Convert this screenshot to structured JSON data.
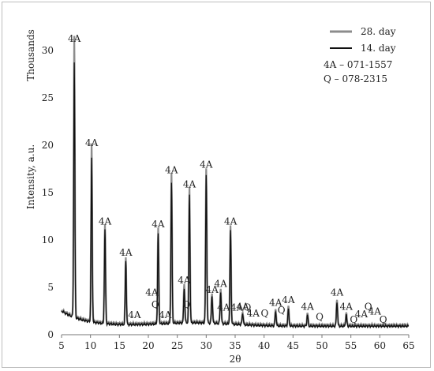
{
  "chart_data": {
    "type": "line",
    "ylabel": "Intensity, a.u.",
    "y_unit_label": "Thousands",
    "xlabel": "2θ",
    "xlim": [
      5,
      65
    ],
    "ylim": [
      0,
      32
    ],
    "x_ticks": [
      "5",
      "10",
      "15",
      "20",
      "25",
      "30",
      "35",
      "40",
      "45",
      "50",
      "55",
      "60",
      "65"
    ],
    "y_ticks": [
      "0",
      "5",
      "10",
      "15",
      "20",
      "25",
      "30"
    ],
    "legend_position": "top-right",
    "reference_text": [
      "4A – 071-1557",
      "Q – 078-2315"
    ],
    "series": [
      {
        "name": "28. day",
        "color": "#8c8c8c",
        "peaks": [
          [
            7.2,
            30.6
          ],
          [
            10.2,
            19.6
          ],
          [
            12.5,
            11.3
          ],
          [
            16.1,
            8.0
          ],
          [
            21.7,
            11.0
          ],
          [
            24.0,
            16.7
          ],
          [
            26.2,
            5.1
          ],
          [
            27.1,
            15.2
          ],
          [
            30.0,
            17.3
          ],
          [
            31.0,
            4.1
          ],
          [
            32.5,
            4.7
          ],
          [
            34.2,
            11.3
          ],
          [
            36.3,
            2.3
          ],
          [
            42.0,
            2.7
          ],
          [
            44.2,
            3.0
          ],
          [
            47.5,
            2.3
          ],
          [
            52.6,
            3.8
          ],
          [
            54.2,
            2.3
          ]
        ]
      },
      {
        "name": "14. day",
        "color": "#111111",
        "peaks": [
          [
            7.2,
            27.8
          ],
          [
            10.2,
            18.1
          ],
          [
            12.5,
            10.8
          ],
          [
            16.1,
            7.6
          ],
          [
            21.7,
            10.4
          ],
          [
            24.0,
            15.7
          ],
          [
            26.2,
            4.6
          ],
          [
            27.1,
            14.4
          ],
          [
            30.0,
            16.6
          ],
          [
            31.0,
            3.8
          ],
          [
            32.5,
            4.3
          ],
          [
            34.2,
            10.8
          ],
          [
            36.3,
            2.1
          ],
          [
            42.0,
            2.4
          ],
          [
            44.2,
            2.7
          ],
          [
            47.5,
            2.1
          ],
          [
            52.6,
            3.5
          ],
          [
            54.2,
            2.1
          ]
        ]
      }
    ],
    "annotations": [
      {
        "text": "4A",
        "x": 7.2,
        "y": 30.6
      },
      {
        "text": "4A",
        "x": 10.2,
        "y": 19.6
      },
      {
        "text": "4A",
        "x": 12.5,
        "y": 11.3
      },
      {
        "text": "4A",
        "x": 16.1,
        "y": 8.0
      },
      {
        "text": "4A",
        "x": 17.6,
        "y": 1.4
      },
      {
        "text": "4A",
        "x": 20.6,
        "y": 3.8
      },
      {
        "text": "Q",
        "x": 21.2,
        "y": 2.5
      },
      {
        "text": "4A",
        "x": 21.7,
        "y": 11.0
      },
      {
        "text": "4A",
        "x": 22.9,
        "y": 1.4
      },
      {
        "text": "4A",
        "x": 24.0,
        "y": 16.7
      },
      {
        "text": "4A",
        "x": 26.2,
        "y": 5.1
      },
      {
        "text": "Q",
        "x": 26.6,
        "y": 2.5
      },
      {
        "text": "4A",
        "x": 27.1,
        "y": 15.2
      },
      {
        "text": "4A",
        "x": 30.0,
        "y": 17.3
      },
      {
        "text": "4A",
        "x": 31.0,
        "y": 4.1
      },
      {
        "text": "4A",
        "x": 32.5,
        "y": 4.7
      },
      {
        "text": "4A",
        "x": 33.0,
        "y": 2.2
      },
      {
        "text": "4A",
        "x": 34.2,
        "y": 11.3
      },
      {
        "text": "4A",
        "x": 35.3,
        "y": 2.2
      },
      {
        "text": "4A",
        "x": 36.3,
        "y": 2.3
      },
      {
        "text": "Q",
        "x": 37.1,
        "y": 2.2
      },
      {
        "text": "4A",
        "x": 38.1,
        "y": 1.6
      },
      {
        "text": "Q",
        "x": 40.1,
        "y": 1.6
      },
      {
        "text": "4A",
        "x": 42.0,
        "y": 2.7
      },
      {
        "text": "Q",
        "x": 43.0,
        "y": 1.9
      },
      {
        "text": "4A",
        "x": 44.2,
        "y": 3.0
      },
      {
        "text": "4A",
        "x": 47.5,
        "y": 2.3
      },
      {
        "text": "Q",
        "x": 49.6,
        "y": 1.2
      },
      {
        "text": "4A",
        "x": 52.6,
        "y": 3.8
      },
      {
        "text": "4A",
        "x": 54.2,
        "y": 2.3
      },
      {
        "text": "Q",
        "x": 55.5,
        "y": 0.9
      },
      {
        "text": "4A",
        "x": 56.8,
        "y": 1.5
      },
      {
        "text": "Q",
        "x": 58.0,
        "y": 2.3
      },
      {
        "text": "4A",
        "x": 59.1,
        "y": 1.8
      },
      {
        "text": "Q",
        "x": 60.6,
        "y": 0.9
      }
    ]
  }
}
